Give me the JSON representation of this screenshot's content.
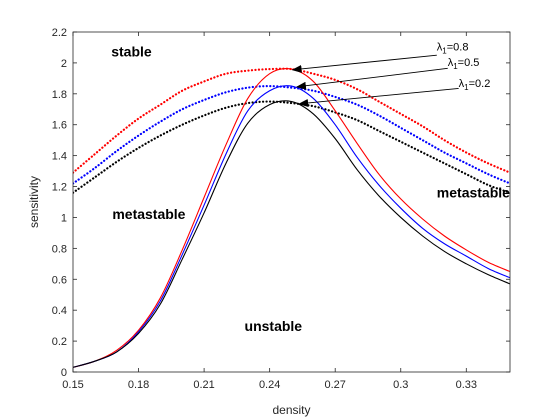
{
  "chart_data": {
    "type": "line",
    "xlabel": "density",
    "ylabel": "sensitivity",
    "xlim": [
      0.15,
      0.35
    ],
    "ylim": [
      0,
      2.2
    ],
    "xticks": [
      "0.15",
      "0.18",
      "0.21",
      "0.24",
      "0.27",
      "0.3",
      "0.33"
    ],
    "xtick_values": [
      0.15,
      0.18,
      0.21,
      0.24,
      0.27,
      0.3,
      0.33
    ],
    "yticks": [
      "0",
      "0.2",
      "0.4",
      "0.6",
      "0.8",
      "1",
      "1.2",
      "1.4",
      "1.6",
      "1.8",
      "2",
      "2.2"
    ],
    "ytick_values": [
      0,
      0.2,
      0.4,
      0.6,
      0.8,
      1.0,
      1.2,
      1.4,
      1.6,
      1.8,
      2.0,
      2.2
    ],
    "grid": false,
    "x": [
      0.15,
      0.16,
      0.17,
      0.18,
      0.19,
      0.2,
      0.21,
      0.22,
      0.23,
      0.24,
      0.25,
      0.26,
      0.27,
      0.28,
      0.29,
      0.3,
      0.31,
      0.32,
      0.33,
      0.34,
      0.35
    ],
    "series": [
      {
        "color": "#ff0000",
        "style": "dotted",
        "values": [
          1.29,
          1.41,
          1.53,
          1.64,
          1.73,
          1.82,
          1.88,
          1.93,
          1.95,
          1.96,
          1.96,
          1.93,
          1.89,
          1.83,
          1.75,
          1.67,
          1.59,
          1.5,
          1.42,
          1.35,
          1.29
        ]
      },
      {
        "color": "#0000ff",
        "style": "dotted",
        "values": [
          1.22,
          1.32,
          1.43,
          1.53,
          1.62,
          1.7,
          1.76,
          1.81,
          1.84,
          1.85,
          1.84,
          1.82,
          1.78,
          1.73,
          1.66,
          1.58,
          1.5,
          1.42,
          1.35,
          1.28,
          1.22
        ]
      },
      {
        "color": "#000000",
        "style": "dotted",
        "values": [
          1.16,
          1.26,
          1.36,
          1.45,
          1.53,
          1.6,
          1.66,
          1.71,
          1.74,
          1.75,
          1.74,
          1.72,
          1.68,
          1.63,
          1.56,
          1.49,
          1.42,
          1.35,
          1.28,
          1.21,
          1.16
        ]
      },
      {
        "color": "#ff0000",
        "style": "solid",
        "values": [
          0.03,
          0.07,
          0.14,
          0.27,
          0.48,
          0.79,
          1.13,
          1.47,
          1.77,
          1.93,
          1.96,
          1.88,
          1.69,
          1.48,
          1.28,
          1.12,
          0.99,
          0.88,
          0.79,
          0.71,
          0.65
        ]
      },
      {
        "color": "#0000ff",
        "style": "solid",
        "values": [
          0.03,
          0.07,
          0.13,
          0.26,
          0.46,
          0.76,
          1.08,
          1.41,
          1.69,
          1.82,
          1.85,
          1.77,
          1.6,
          1.39,
          1.21,
          1.06,
          0.93,
          0.83,
          0.75,
          0.67,
          0.61
        ]
      },
      {
        "color": "#000000",
        "style": "solid",
        "values": [
          0.03,
          0.07,
          0.13,
          0.25,
          0.44,
          0.73,
          1.03,
          1.35,
          1.61,
          1.73,
          1.75,
          1.67,
          1.51,
          1.31,
          1.14,
          1.0,
          0.88,
          0.78,
          0.7,
          0.63,
          0.57
        ]
      }
    ],
    "annotations": [
      {
        "text": "λ1=0.8",
        "lambda": "λ",
        "sub": "1",
        "value": "=0.8",
        "arrow_from": [
          0.3165,
          2.05
        ],
        "arrow_to": [
          0.2505,
          1.955
        ],
        "text_at": [
          0.3165,
          2.08
        ]
      },
      {
        "text": "λ1=0.5",
        "lambda": "λ",
        "sub": "1",
        "value": "=0.5",
        "arrow_from": [
          0.3215,
          1.965
        ],
        "arrow_to": [
          0.2525,
          1.845
        ],
        "text_at": [
          0.3215,
          1.98
        ]
      },
      {
        "text": "λ1=0.2",
        "lambda": "λ",
        "sub": "1",
        "value": "=0.2",
        "arrow_from": [
          0.3265,
          1.835
        ],
        "arrow_to": [
          0.2535,
          1.735
        ],
        "text_at": [
          0.3265,
          1.845
        ]
      }
    ],
    "region_labels": [
      {
        "text": "stable",
        "x": 0.1675,
        "y": 2.04
      },
      {
        "text": "metastable",
        "x": 0.168,
        "y": 0.99
      },
      {
        "text": "metastable",
        "x": 0.3165,
        "y": 1.13
      },
      {
        "text": "unstable",
        "x": 0.2285,
        "y": 0.265
      }
    ]
  }
}
